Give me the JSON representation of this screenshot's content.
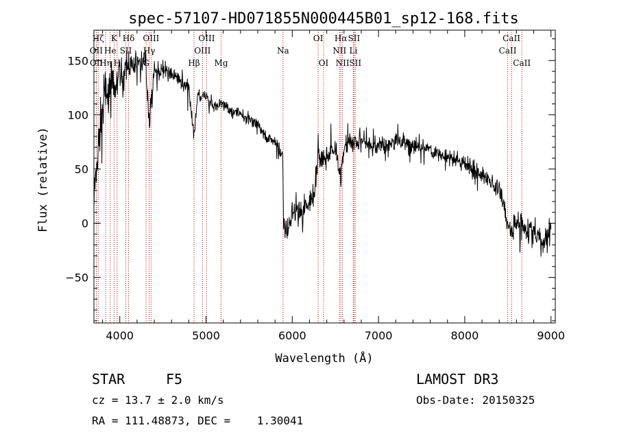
{
  "chart_data": {
    "type": "line",
    "title": "spec-57107-HD071855N000445B01_sp12-168.fits",
    "xlabel": "Wavelength (Å)",
    "ylabel": "Flux (relative)",
    "xlim": [
      3700,
      9050
    ],
    "ylim": [
      -92,
      178
    ],
    "x_ticks": [
      4000,
      5000,
      6000,
      7000,
      8000,
      9000
    ],
    "y_ticks": [
      -50,
      0,
      50,
      100,
      150
    ],
    "grid": false,
    "series": [
      {
        "name": "flux",
        "anchors_x": [
          3700,
          3740,
          3780,
          3820,
          3860,
          3900,
          3950,
          4000,
          4050,
          4100,
          4150,
          4200,
          4300,
          4340,
          4400,
          4500,
          4600,
          4700,
          4800,
          4862,
          4900,
          5000,
          5100,
          5200,
          5300,
          5400,
          5500,
          5600,
          5700,
          5800,
          5850,
          5890,
          5900,
          5950,
          6000,
          6100,
          6200,
          6250,
          6300,
          6400,
          6500,
          6563,
          6600,
          6700,
          6800,
          7000,
          7200,
          7400,
          7600,
          7800,
          8000,
          8200,
          8400,
          8500,
          8542,
          8600,
          8700,
          8800,
          8900,
          9000
        ],
        "anchors_y": [
          20,
          60,
          95,
          115,
          125,
          130,
          120,
          140,
          135,
          150,
          140,
          150,
          150,
          95,
          140,
          140,
          138,
          130,
          125,
          80,
          118,
          115,
          108,
          110,
          104,
          100,
          95,
          90,
          80,
          75,
          70,
          60,
          0,
          -5,
          10,
          10,
          20,
          30,
          60,
          60,
          70,
          40,
          70,
          75,
          75,
          72,
          75,
          72,
          68,
          60,
          55,
          45,
          30,
          0,
          -10,
          5,
          -5,
          -10,
          -20,
          -5
        ],
        "noise_amplitude_x": [
          3700,
          4000,
          4200,
          4500,
          5000,
          5800,
          5900,
          6500,
          6800,
          7500,
          8200,
          8500,
          9000
        ],
        "noise_amplitude": [
          25,
          18,
          14,
          8,
          7,
          6,
          14,
          12,
          10,
          8,
          9,
          12,
          15
        ]
      }
    ],
    "lines": [
      {
        "label": "Hζ",
        "wl": 3750,
        "row": 0
      },
      {
        "label": "OII",
        "wl": 3727,
        "row": 1
      },
      {
        "label": "OII",
        "wl": 3729,
        "row": 2
      },
      {
        "label": "Hη",
        "wl": 3835,
        "row": 2
      },
      {
        "label": "K",
        "wl": 3934,
        "row": 0
      },
      {
        "label": "He",
        "wl": 3889,
        "row": 1
      },
      {
        "label": "SII",
        "wl": 4070,
        "row": 1
      },
      {
        "label": "H",
        "wl": 3969,
        "row": 2
      },
      {
        "label": "Hδ",
        "wl": 4102,
        "row": 0
      },
      {
        "label": "OIII",
        "wl": 4363,
        "row": 0
      },
      {
        "label": "Hγ",
        "wl": 4341,
        "row": 1
      },
      {
        "label": "G",
        "wl": 4305,
        "row": 2
      },
      {
        "label": "Hβ",
        "wl": 4861,
        "row": 2
      },
      {
        "label": "OIII",
        "wl": 5007,
        "row": 0
      },
      {
        "label": "OIII",
        "wl": 4959,
        "row": 1
      },
      {
        "label": "Mg",
        "wl": 5175,
        "row": 2
      },
      {
        "label": "Na",
        "wl": 5893,
        "row": 1
      },
      {
        "label": "OI",
        "wl": 6300,
        "row": 0
      },
      {
        "label": "OI",
        "wl": 6363,
        "row": 2
      },
      {
        "label": "Hα",
        "wl": 6563,
        "row": 0
      },
      {
        "label": "NII",
        "wl": 6548,
        "row": 1
      },
      {
        "label": "NII",
        "wl": 6583,
        "row": 2
      },
      {
        "label": "SII",
        "wl": 6716,
        "row": 0
      },
      {
        "label": "Li",
        "wl": 6708,
        "row": 1
      },
      {
        "label": "SII",
        "wl": 6731,
        "row": 2
      },
      {
        "label": "CaII",
        "wl": 8542,
        "row": 0
      },
      {
        "label": "CaII",
        "wl": 8498,
        "row": 1
      },
      {
        "label": "CaII",
        "wl": 8662,
        "row": 2
      }
    ],
    "colors": {
      "spectrum": "#000000",
      "marker": "#c00000"
    }
  },
  "info": {
    "object_type": "STAR",
    "subclass": "F5",
    "redshift": "cz = 13.7 ± 2.0 km/s",
    "coordinates": "RA = 111.48873, DEC =    1.30041",
    "survey": "LAMOST DR3",
    "obs_date": "Obs-Date: 20150325"
  }
}
